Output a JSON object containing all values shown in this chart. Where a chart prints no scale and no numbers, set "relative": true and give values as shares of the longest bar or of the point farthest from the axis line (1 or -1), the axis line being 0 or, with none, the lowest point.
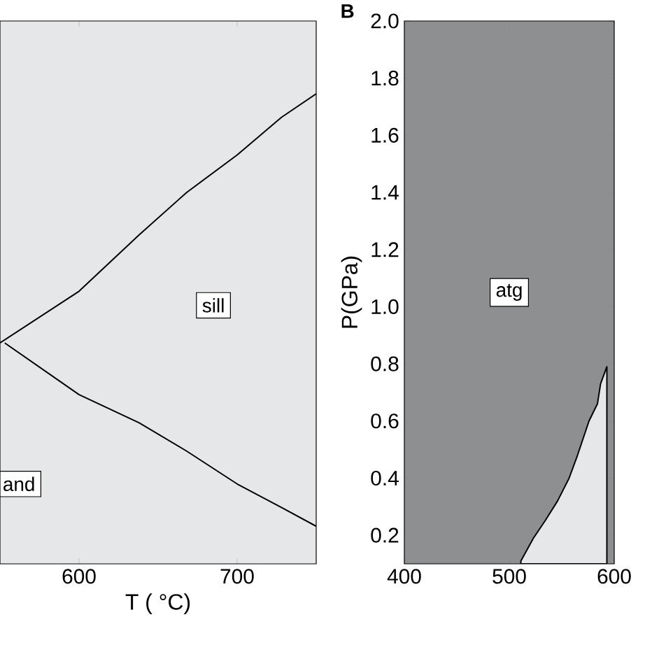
{
  "chart_data": [
    {
      "type": "line",
      "relative": true,
      "xlabel": "T ( °C)",
      "xlim": [
        550,
        750
      ],
      "xticks": [
        600,
        700
      ],
      "bands": [
        {
          "axis": "x",
          "from": 550,
          "to": 750,
          "color": "#e6e7e8"
        }
      ],
      "series": [
        {
          "color": "#000000",
          "x": [
            550,
            600,
            638,
            668,
            700,
            728,
            750
          ],
          "values": [
            0.47,
            0.58,
            0.7,
            0.79,
            0.87,
            0.95,
            1.0
          ]
        },
        {
          "color": "#000000",
          "x": [
            553,
            600,
            638,
            668,
            700,
            728,
            750
          ],
          "values": [
            0.47,
            0.36,
            0.3,
            0.24,
            0.17,
            0.12,
            0.08
          ]
        }
      ],
      "annotations": [
        {
          "text": "sill",
          "x": 685,
          "y": 0.55
        },
        {
          "text": "and",
          "x": 562,
          "y": 0.17
        }
      ]
    },
    {
      "type": "area",
      "title": "B",
      "ylabel": "P(GPa)",
      "xlim": [
        400,
        600
      ],
      "xticks": [
        400,
        500,
        600
      ],
      "ylim": [
        0.1,
        2.0
      ],
      "yticks": [
        0.2,
        0.4,
        0.6,
        0.8,
        {
          "value": 1,
          "label": "1.0"
        },
        1.2,
        1.4,
        1.6,
        1.8,
        {
          "value": 2,
          "label": "2.0"
        }
      ],
      "bands": [
        {
          "axis": "x",
          "from": 400,
          "to": 600,
          "color": "#8e8f91",
          "label": "atg"
        }
      ],
      "series": [
        {
          "color": "#e6e7e8",
          "x": [
            511,
            523,
            534,
            546,
            557,
            565,
            576,
            584,
            587,
            593
          ],
          "values": [
            0.11,
            0.19,
            0.25,
            0.32,
            0.4,
            0.48,
            0.6,
            0.66,
            0.73,
            0.79
          ]
        }
      ]
    }
  ]
}
